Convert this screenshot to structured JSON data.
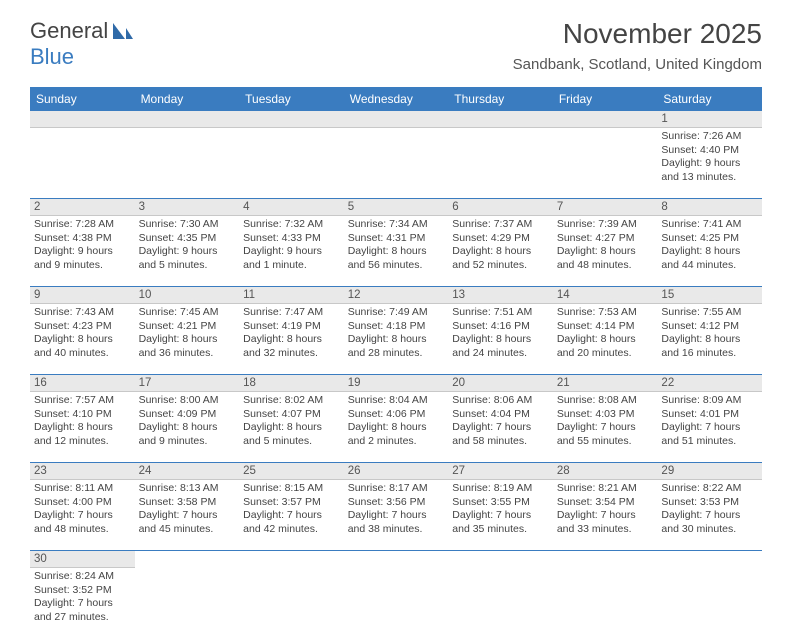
{
  "logo": {
    "part1": "General",
    "part2": "Blue"
  },
  "title": "November 2025",
  "location": "Sandbank, Scotland, United Kingdom",
  "colors": {
    "header_bg": "#3a7cc0",
    "header_text": "#ffffff",
    "daynum_bg": "#e9e9e9",
    "week_border": "#3a7cc0",
    "text": "#444444"
  },
  "daynames": [
    "Sunday",
    "Monday",
    "Tuesday",
    "Wednesday",
    "Thursday",
    "Friday",
    "Saturday"
  ],
  "weeks": [
    [
      {
        "n": "",
        "sr": "",
        "ss": "",
        "d1": "",
        "d2": ""
      },
      {
        "n": "",
        "sr": "",
        "ss": "",
        "d1": "",
        "d2": ""
      },
      {
        "n": "",
        "sr": "",
        "ss": "",
        "d1": "",
        "d2": ""
      },
      {
        "n": "",
        "sr": "",
        "ss": "",
        "d1": "",
        "d2": ""
      },
      {
        "n": "",
        "sr": "",
        "ss": "",
        "d1": "",
        "d2": ""
      },
      {
        "n": "",
        "sr": "",
        "ss": "",
        "d1": "",
        "d2": ""
      },
      {
        "n": "1",
        "sr": "Sunrise: 7:26 AM",
        "ss": "Sunset: 4:40 PM",
        "d1": "Daylight: 9 hours",
        "d2": "and 13 minutes."
      }
    ],
    [
      {
        "n": "2",
        "sr": "Sunrise: 7:28 AM",
        "ss": "Sunset: 4:38 PM",
        "d1": "Daylight: 9 hours",
        "d2": "and 9 minutes."
      },
      {
        "n": "3",
        "sr": "Sunrise: 7:30 AM",
        "ss": "Sunset: 4:35 PM",
        "d1": "Daylight: 9 hours",
        "d2": "and 5 minutes."
      },
      {
        "n": "4",
        "sr": "Sunrise: 7:32 AM",
        "ss": "Sunset: 4:33 PM",
        "d1": "Daylight: 9 hours",
        "d2": "and 1 minute."
      },
      {
        "n": "5",
        "sr": "Sunrise: 7:34 AM",
        "ss": "Sunset: 4:31 PM",
        "d1": "Daylight: 8 hours",
        "d2": "and 56 minutes."
      },
      {
        "n": "6",
        "sr": "Sunrise: 7:37 AM",
        "ss": "Sunset: 4:29 PM",
        "d1": "Daylight: 8 hours",
        "d2": "and 52 minutes."
      },
      {
        "n": "7",
        "sr": "Sunrise: 7:39 AM",
        "ss": "Sunset: 4:27 PM",
        "d1": "Daylight: 8 hours",
        "d2": "and 48 minutes."
      },
      {
        "n": "8",
        "sr": "Sunrise: 7:41 AM",
        "ss": "Sunset: 4:25 PM",
        "d1": "Daylight: 8 hours",
        "d2": "and 44 minutes."
      }
    ],
    [
      {
        "n": "9",
        "sr": "Sunrise: 7:43 AM",
        "ss": "Sunset: 4:23 PM",
        "d1": "Daylight: 8 hours",
        "d2": "and 40 minutes."
      },
      {
        "n": "10",
        "sr": "Sunrise: 7:45 AM",
        "ss": "Sunset: 4:21 PM",
        "d1": "Daylight: 8 hours",
        "d2": "and 36 minutes."
      },
      {
        "n": "11",
        "sr": "Sunrise: 7:47 AM",
        "ss": "Sunset: 4:19 PM",
        "d1": "Daylight: 8 hours",
        "d2": "and 32 minutes."
      },
      {
        "n": "12",
        "sr": "Sunrise: 7:49 AM",
        "ss": "Sunset: 4:18 PM",
        "d1": "Daylight: 8 hours",
        "d2": "and 28 minutes."
      },
      {
        "n": "13",
        "sr": "Sunrise: 7:51 AM",
        "ss": "Sunset: 4:16 PM",
        "d1": "Daylight: 8 hours",
        "d2": "and 24 minutes."
      },
      {
        "n": "14",
        "sr": "Sunrise: 7:53 AM",
        "ss": "Sunset: 4:14 PM",
        "d1": "Daylight: 8 hours",
        "d2": "and 20 minutes."
      },
      {
        "n": "15",
        "sr": "Sunrise: 7:55 AM",
        "ss": "Sunset: 4:12 PM",
        "d1": "Daylight: 8 hours",
        "d2": "and 16 minutes."
      }
    ],
    [
      {
        "n": "16",
        "sr": "Sunrise: 7:57 AM",
        "ss": "Sunset: 4:10 PM",
        "d1": "Daylight: 8 hours",
        "d2": "and 12 minutes."
      },
      {
        "n": "17",
        "sr": "Sunrise: 8:00 AM",
        "ss": "Sunset: 4:09 PM",
        "d1": "Daylight: 8 hours",
        "d2": "and 9 minutes."
      },
      {
        "n": "18",
        "sr": "Sunrise: 8:02 AM",
        "ss": "Sunset: 4:07 PM",
        "d1": "Daylight: 8 hours",
        "d2": "and 5 minutes."
      },
      {
        "n": "19",
        "sr": "Sunrise: 8:04 AM",
        "ss": "Sunset: 4:06 PM",
        "d1": "Daylight: 8 hours",
        "d2": "and 2 minutes."
      },
      {
        "n": "20",
        "sr": "Sunrise: 8:06 AM",
        "ss": "Sunset: 4:04 PM",
        "d1": "Daylight: 7 hours",
        "d2": "and 58 minutes."
      },
      {
        "n": "21",
        "sr": "Sunrise: 8:08 AM",
        "ss": "Sunset: 4:03 PM",
        "d1": "Daylight: 7 hours",
        "d2": "and 55 minutes."
      },
      {
        "n": "22",
        "sr": "Sunrise: 8:09 AM",
        "ss": "Sunset: 4:01 PM",
        "d1": "Daylight: 7 hours",
        "d2": "and 51 minutes."
      }
    ],
    [
      {
        "n": "23",
        "sr": "Sunrise: 8:11 AM",
        "ss": "Sunset: 4:00 PM",
        "d1": "Daylight: 7 hours",
        "d2": "and 48 minutes."
      },
      {
        "n": "24",
        "sr": "Sunrise: 8:13 AM",
        "ss": "Sunset: 3:58 PM",
        "d1": "Daylight: 7 hours",
        "d2": "and 45 minutes."
      },
      {
        "n": "25",
        "sr": "Sunrise: 8:15 AM",
        "ss": "Sunset: 3:57 PM",
        "d1": "Daylight: 7 hours",
        "d2": "and 42 minutes."
      },
      {
        "n": "26",
        "sr": "Sunrise: 8:17 AM",
        "ss": "Sunset: 3:56 PM",
        "d1": "Daylight: 7 hours",
        "d2": "and 38 minutes."
      },
      {
        "n": "27",
        "sr": "Sunrise: 8:19 AM",
        "ss": "Sunset: 3:55 PM",
        "d1": "Daylight: 7 hours",
        "d2": "and 35 minutes."
      },
      {
        "n": "28",
        "sr": "Sunrise: 8:21 AM",
        "ss": "Sunset: 3:54 PM",
        "d1": "Daylight: 7 hours",
        "d2": "and 33 minutes."
      },
      {
        "n": "29",
        "sr": "Sunrise: 8:22 AM",
        "ss": "Sunset: 3:53 PM",
        "d1": "Daylight: 7 hours",
        "d2": "and 30 minutes."
      }
    ],
    [
      {
        "n": "30",
        "sr": "Sunrise: 8:24 AM",
        "ss": "Sunset: 3:52 PM",
        "d1": "Daylight: 7 hours",
        "d2": "and 27 minutes."
      },
      {
        "n": "",
        "sr": "",
        "ss": "",
        "d1": "",
        "d2": ""
      },
      {
        "n": "",
        "sr": "",
        "ss": "",
        "d1": "",
        "d2": ""
      },
      {
        "n": "",
        "sr": "",
        "ss": "",
        "d1": "",
        "d2": ""
      },
      {
        "n": "",
        "sr": "",
        "ss": "",
        "d1": "",
        "d2": ""
      },
      {
        "n": "",
        "sr": "",
        "ss": "",
        "d1": "",
        "d2": ""
      },
      {
        "n": "",
        "sr": "",
        "ss": "",
        "d1": "",
        "d2": ""
      }
    ]
  ]
}
